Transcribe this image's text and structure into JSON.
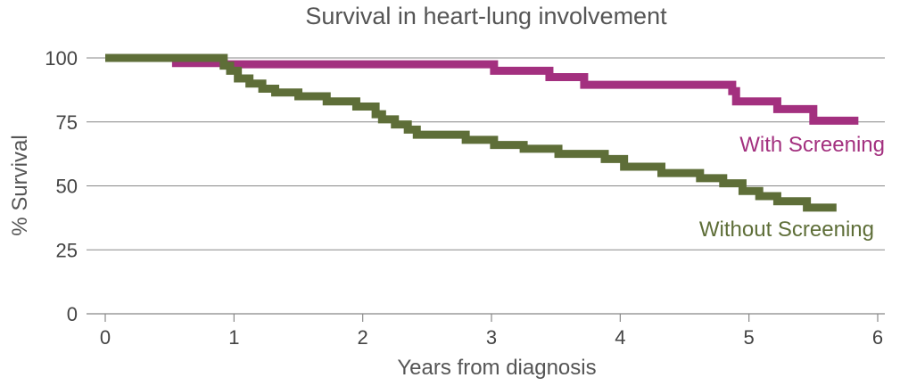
{
  "chart_data": {
    "type": "line",
    "step": true,
    "title": "Survival in heart-lung involvement",
    "xlabel": "Years from diagnosis",
    "ylabel": "% Survival",
    "xlim": [
      0,
      6
    ],
    "ylim": [
      0,
      100
    ],
    "xticks": [
      "0",
      "1",
      "2",
      "3",
      "4",
      "5",
      "6"
    ],
    "yticks": [
      "0",
      "25",
      "50",
      "75",
      "100"
    ],
    "grid": "horizontal",
    "legend": "inline-labels",
    "series": [
      {
        "name": "With Screening",
        "color": "#a3307f",
        "x": [
          0.0,
          0.55,
          0.92,
          3.02,
          3.45,
          3.72,
          4.87,
          4.9,
          5.22,
          5.5,
          5.85
        ],
        "y": [
          100,
          98,
          97.5,
          95,
          92.5,
          89.5,
          87,
          83,
          80,
          75.5,
          75.5
        ]
      },
      {
        "name": "Without Screening",
        "color": "#5e6e38",
        "x": [
          0.0,
          0.92,
          0.97,
          1.03,
          1.12,
          1.22,
          1.32,
          1.5,
          1.72,
          1.95,
          2.1,
          2.15,
          2.25,
          2.35,
          2.42,
          2.8,
          3.02,
          3.25,
          3.52,
          3.88,
          4.03,
          4.32,
          4.62,
          4.8,
          4.95,
          5.08,
          5.22,
          5.45,
          5.68
        ],
        "y": [
          100,
          97,
          95,
          92,
          90,
          88,
          86.5,
          85,
          83,
          81,
          78,
          76,
          74,
          72,
          70,
          68,
          66,
          64.5,
          62.5,
          60.5,
          57.5,
          55,
          53,
          51,
          48,
          46,
          44,
          41.5,
          41.5
        ]
      }
    ]
  }
}
